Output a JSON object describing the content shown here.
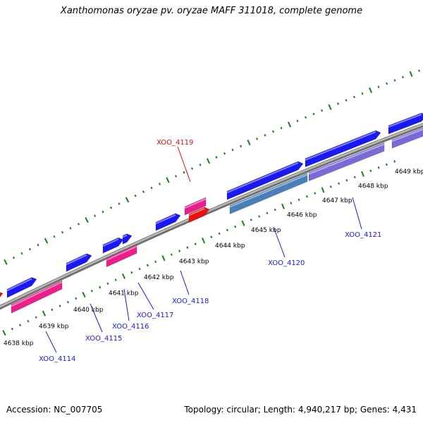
{
  "title": "Xanthomonas oryzae pv. oryzae MAFF 311018, complete genome",
  "footer": {
    "accession": "Accession: NC_007705",
    "summary": "Topology: circular; Length: 4,940,217 bp; Genes: 4,431"
  },
  "colors": {
    "backbone": "#8a8a8a",
    "tick": "#1e7a1e",
    "forward_gene": "#1a1af0",
    "reverse_gene": "#e8208a",
    "rna_gene": "#e81010",
    "steel_gene": "#4a80b8",
    "purple_gene": "#7a6ad8",
    "forward_label": "#1a1ac8",
    "reverse_label": "#d01010"
  },
  "scale_labels": [
    "4638 kbp",
    "4639 kbp",
    "4640 kbp",
    "4641 kbp",
    "4642 kbp",
    "4643 kbp",
    "4644 kbp",
    "4645 kbp",
    "4646 kbp",
    "4647 kbp",
    "4648 kbp",
    "4649 kbp"
  ],
  "gene_labels": [
    {
      "text": "XOO_4114",
      "strand": "forward"
    },
    {
      "text": "XOO_4115",
      "strand": "forward"
    },
    {
      "text": "XOO_4116",
      "strand": "forward"
    },
    {
      "text": "XOO_4117",
      "strand": "forward"
    },
    {
      "text": "XOO_4118",
      "strand": "forward"
    },
    {
      "text": "XOO_4119",
      "strand": "reverse"
    },
    {
      "text": "XOO_4120",
      "strand": "forward"
    },
    {
      "text": "XOO_4121",
      "strand": "forward"
    }
  ]
}
